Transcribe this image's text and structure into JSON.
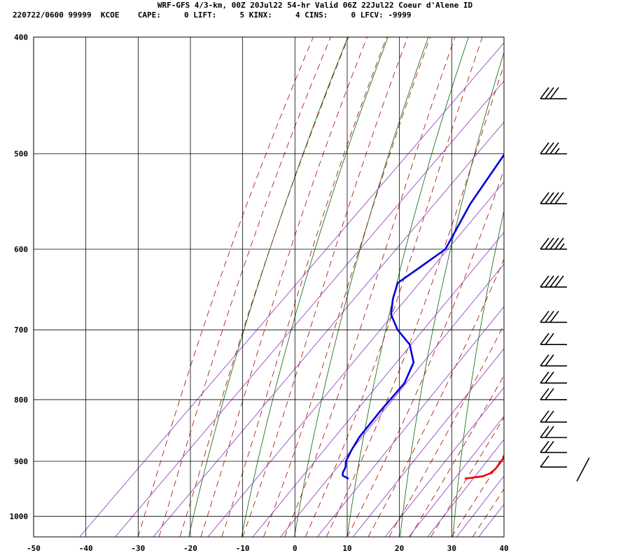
{
  "header": {
    "line1": "WRF-GFS 4/3-km, 00Z 20Jul22 54-hr Valid 06Z 22Jul22 Coeur d'Alene ID",
    "line2": "220722/0600 99999  KCOE    CAPE:     0 LIFT:     5 KINX:     4 CINS:     0 LFCV: -9999"
  },
  "colors": {
    "temperature": "#ee0000",
    "dewpoint": "#0000dd",
    "dry_adiabat": "#006600",
    "moist_adiabat": "#aa0000",
    "mixing_ratio": "#8833bb",
    "grid": "#000000"
  },
  "chart_data": {
    "type": "line",
    "title": "",
    "xlabel": "",
    "ylabel": "",
    "xlim": [
      -50,
      40
    ],
    "ylim": [
      1040,
      400
    ],
    "y_scale": "log",
    "x_ticks": [
      -50,
      -40,
      -30,
      -20,
      -10,
      0,
      10,
      20,
      30,
      40
    ],
    "x_tick_labels": [
      "-50",
      "-40",
      "-30",
      "-20",
      "-10",
      "0",
      "10",
      "20",
      "30",
      "40"
    ],
    "y_ticks": [
      400,
      500,
      600,
      700,
      800,
      900,
      1000
    ],
    "y_tick_labels": [
      "400",
      "500",
      "600",
      "700",
      "800",
      "900",
      "1000"
    ],
    "grid": true,
    "series": [
      {
        "key": "temperature",
        "pressure": [
          930,
          929,
          926,
          921,
          913,
          902,
          880,
          860,
          820,
          790,
          760,
          735,
          700,
          680,
          660,
          640,
          620,
          600,
          550,
          500,
          450
        ],
        "temp": [
          22,
          23,
          25,
          25.8,
          26,
          25.8,
          25,
          23.6,
          20.5,
          17.5,
          14.8,
          13,
          10,
          8,
          6,
          4,
          2,
          0,
          -5,
          -11,
          -18.9
        ]
      },
      {
        "key": "dewpoint",
        "pressure": [
          930,
          925,
          920,
          910,
          900,
          880,
          860,
          820,
          775,
          745,
          720,
          700,
          680,
          660,
          640,
          620,
          600,
          550,
          500,
          450
        ],
        "temp": [
          -0.5,
          -2,
          -2.5,
          -3,
          -4,
          -5,
          -5.8,
          -6.5,
          -7,
          -9,
          -13,
          -18,
          -22,
          -24.5,
          -26.5,
          -25,
          -23.5,
          -27,
          -29.5,
          -30
        ]
      }
    ],
    "wind_barbs": [
      {
        "pressure": 450,
        "flags": 0,
        "full": 3,
        "half": 0
      },
      {
        "pressure": 500,
        "flags": 0,
        "full": 3,
        "half": 1
      },
      {
        "pressure": 550,
        "flags": 0,
        "full": 4,
        "half": 0
      },
      {
        "pressure": 600,
        "flags": 0,
        "full": 4,
        "half": 1
      },
      {
        "pressure": 645,
        "flags": 0,
        "full": 4,
        "half": 0
      },
      {
        "pressure": 690,
        "flags": 0,
        "full": 3,
        "half": 0
      },
      {
        "pressure": 720,
        "flags": 0,
        "full": 2,
        "half": 0
      },
      {
        "pressure": 750,
        "flags": 0,
        "full": 2,
        "half": 0
      },
      {
        "pressure": 775,
        "flags": 0,
        "full": 2,
        "half": 0
      },
      {
        "pressure": 800,
        "flags": 0,
        "full": 2,
        "half": 0
      },
      {
        "pressure": 835,
        "flags": 0,
        "full": 2,
        "half": 0
      },
      {
        "pressure": 860,
        "flags": 0,
        "full": 2,
        "half": 0
      },
      {
        "pressure": 885,
        "flags": 0,
        "full": 2,
        "half": 0
      },
      {
        "pressure": 910,
        "flags": 0,
        "full": 1,
        "half": 0
      },
      {
        "pressure": 935,
        "flags": 0,
        "full": 0,
        "half": 0
      }
    ]
  }
}
